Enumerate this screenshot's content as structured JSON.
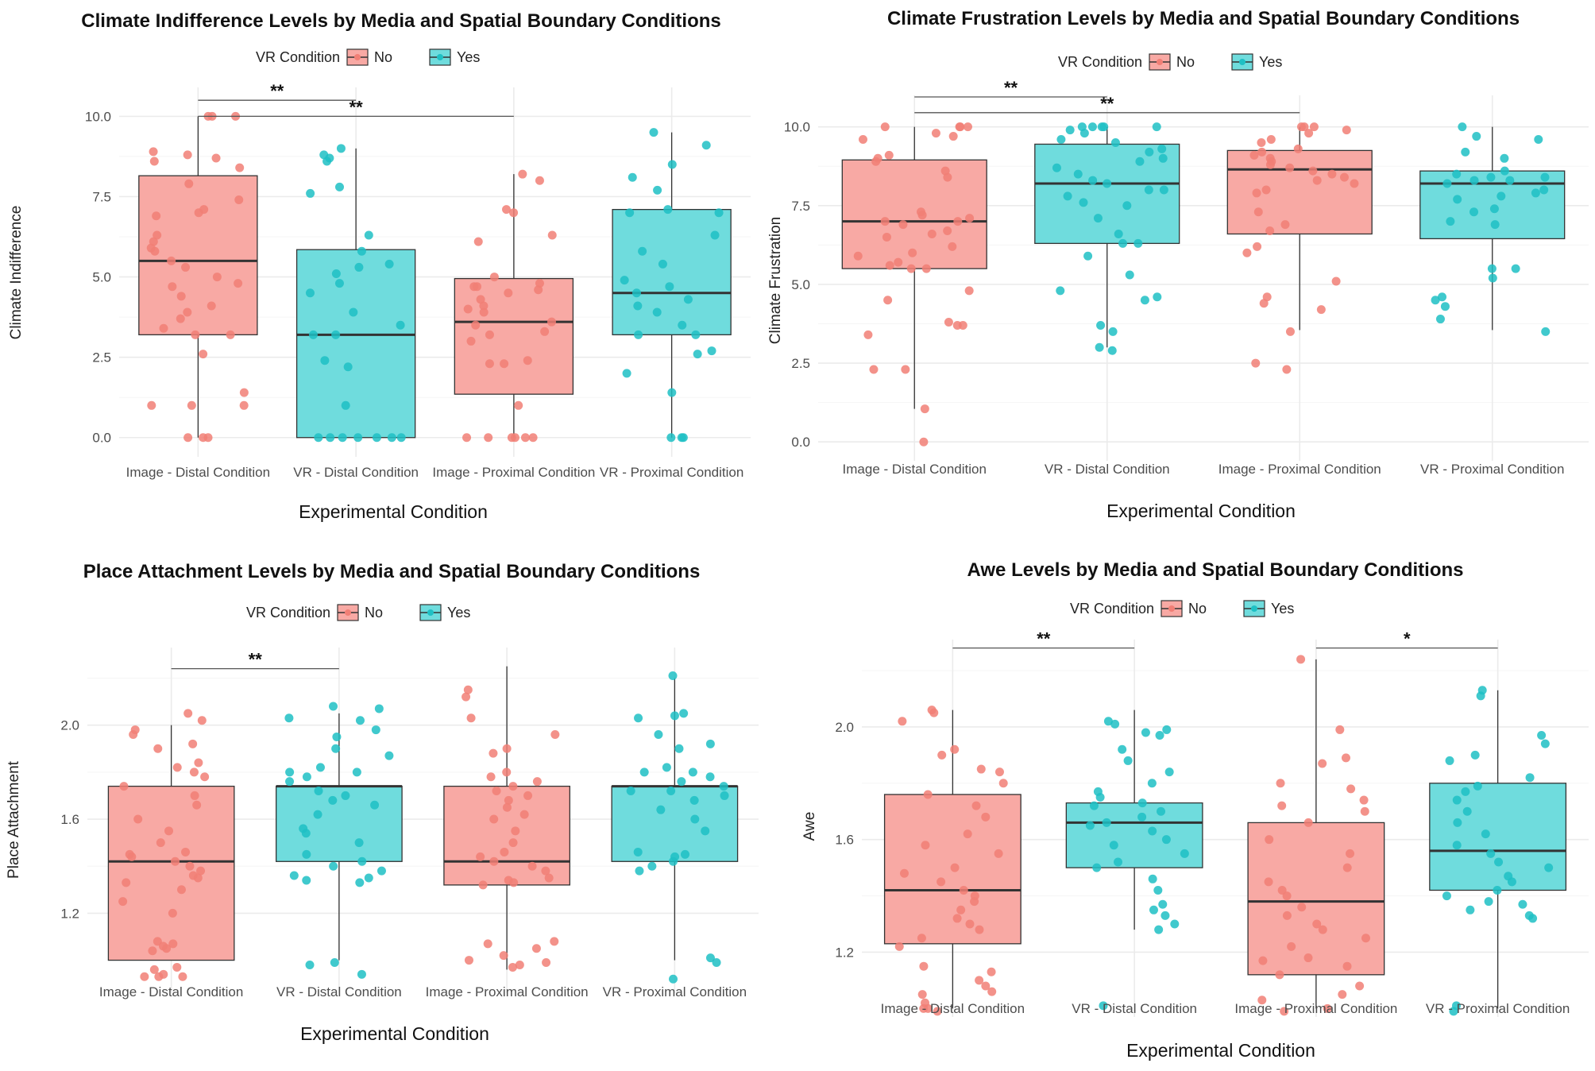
{
  "legend": {
    "title": "VR Condition",
    "labels": [
      "No",
      "Yes"
    ]
  },
  "colors": {
    "no_fill": "#f8a9a4",
    "no_point": "#f17f76",
    "yes_fill": "#6fdcdd",
    "yes_point": "#1fc0c4",
    "box_stroke": "#333333",
    "median": "#333333",
    "grid_major": "#ebebeb",
    "grid_minor": "#f5f5f5"
  },
  "chart_data": [
    {
      "type": "box",
      "title": "Climate Indifference Levels by Media and Spatial Boundary Conditions",
      "xlabel": "Experimental Condition",
      "ylabel": "Climate Indifference",
      "categories": [
        "Image - Distal Condition",
        "VR - Distal Condition",
        "Image - Proximal Condition",
        "VR - Proximal Condition"
      ],
      "vr": [
        "No",
        "Yes",
        "No",
        "Yes"
      ],
      "ylim": [
        -0.6,
        10.9
      ],
      "yticks": [
        0,
        2.5,
        5,
        7.5,
        10
      ],
      "ytick_labels": [
        "0.0",
        "2.5",
        "5.0",
        "7.5",
        "10.0"
      ],
      "boxes": [
        {
          "q1": 3.2,
          "median": 5.5,
          "q3": 8.15,
          "whisker_low": 0,
          "whisker_high": 10
        },
        {
          "q1": 0,
          "median": 3.2,
          "q3": 5.85,
          "whisker_low": 0,
          "whisker_high": 9
        },
        {
          "q1": 1.35,
          "median": 3.6,
          "q3": 4.95,
          "whisker_low": 0,
          "whisker_high": 8.2
        },
        {
          "q1": 3.2,
          "median": 4.5,
          "q3": 7.1,
          "whisker_low": 0,
          "whisker_high": 9.5
        }
      ],
      "points": [
        [
          10,
          10,
          10,
          8.9,
          8.8,
          8.7,
          8.6,
          8.4,
          7.9,
          7.4,
          7.1,
          7,
          6.9,
          6.3,
          6.1,
          5.9,
          5.8,
          5.5,
          5.3,
          5,
          4.8,
          4.7,
          4.4,
          4.1,
          3.9,
          3.7,
          3.4,
          3.2,
          3.2,
          2.6,
          1.4,
          1,
          1,
          1,
          0,
          0,
          0
        ],
        [
          9,
          8.8,
          8.7,
          8.6,
          7.8,
          7.6,
          6.3,
          5.8,
          5.4,
          5.3,
          5.1,
          4.8,
          4.5,
          3.9,
          3.5,
          3.2,
          3.2,
          2.4,
          2.2,
          1,
          0,
          0,
          0,
          0,
          0,
          0,
          0
        ],
        [
          8.2,
          8,
          7.1,
          7,
          6.3,
          6.1,
          5,
          4.8,
          4.7,
          4.7,
          4.6,
          4.5,
          4.3,
          4.1,
          4,
          3.9,
          3.6,
          3.5,
          3.3,
          3.2,
          3,
          2.4,
          2.3,
          2.3,
          1,
          0,
          0,
          0,
          0,
          0,
          0
        ],
        [
          9.5,
          9.1,
          8.5,
          8.1,
          7.7,
          7.1,
          7,
          7,
          6.3,
          5.8,
          5.4,
          4.9,
          4.7,
          4.5,
          4.3,
          4.1,
          3.9,
          3.5,
          3.2,
          3.2,
          2.7,
          2.6,
          2,
          1.4,
          0,
          0,
          0
        ]
      ],
      "significance": [
        {
          "from": 0,
          "to": 1,
          "label": "**",
          "y": 10.5
        },
        {
          "from": 0,
          "to": 2,
          "label": "**",
          "y": 10.0
        }
      ]
    },
    {
      "type": "box",
      "title": "Climate Frustration Levels by Media and Spatial Boundary Conditions",
      "xlabel": "Experimental Condition",
      "ylabel": "Climate Frustration",
      "categories": [
        "Image - Distal Condition",
        "VR - Distal Condition",
        "Image - Proximal Condition",
        "VR - Proximal Condition"
      ],
      "vr": [
        "No",
        "Yes",
        "No",
        "Yes"
      ],
      "ylim": [
        -0.6,
        11.0
      ],
      "yticks": [
        0,
        2.5,
        5,
        7.5,
        10
      ],
      "ytick_labels": [
        "0.0",
        "2.5",
        "5.0",
        "7.5",
        "10.0"
      ],
      "boxes": [
        {
          "q1": 5.5,
          "median": 7.0,
          "q3": 8.95,
          "whisker_low": 1.05,
          "whisker_high": 10
        },
        {
          "q1": 6.3,
          "median": 8.2,
          "q3": 9.45,
          "whisker_low": 3,
          "whisker_high": 10
        },
        {
          "q1": 6.6,
          "median": 8.65,
          "q3": 9.25,
          "whisker_low": 3.55,
          "whisker_high": 10
        },
        {
          "q1": 6.45,
          "median": 8.2,
          "q3": 8.6,
          "whisker_low": 3.55,
          "whisker_high": 10
        }
      ],
      "points": [
        [
          10,
          10,
          10,
          10,
          9.8,
          9.7,
          9.6,
          9.1,
          9,
          8.9,
          8.6,
          8.4,
          7.3,
          7.2,
          7.1,
          7,
          7,
          6.9,
          6.7,
          6.6,
          6.5,
          6.2,
          6,
          5.9,
          5.7,
          5.6,
          5.5,
          5.5,
          4.8,
          4.5,
          3.8,
          3.7,
          3.7,
          3.4,
          2.3,
          2.3,
          1.05,
          0
        ],
        [
          10,
          10,
          10,
          10,
          10,
          9.9,
          9.8,
          9.6,
          9.5,
          9.3,
          9.2,
          9,
          8.9,
          8.7,
          8.5,
          8.3,
          8.2,
          8,
          8,
          7.8,
          7.6,
          7.5,
          7.1,
          6.6,
          6.3,
          6.3,
          5.9,
          5.3,
          4.8,
          4.6,
          4.5,
          3.7,
          3.5,
          3,
          2.9
        ],
        [
          10,
          10,
          10,
          9.9,
          9.8,
          9.6,
          9.5,
          9.3,
          9.2,
          9.1,
          9,
          8.9,
          8.8,
          8.7,
          8.6,
          8.5,
          8.4,
          8.3,
          8.2,
          8,
          7.9,
          7.3,
          6.9,
          6.7,
          6.2,
          6,
          5.1,
          4.6,
          4.4,
          4.2,
          3.5,
          2.5,
          2.3
        ],
        [
          10,
          9.7,
          9.6,
          9.2,
          9,
          8.6,
          8.5,
          8.4,
          8.4,
          8.3,
          8.3,
          8.2,
          8,
          7.9,
          7.8,
          7.7,
          7.4,
          7.3,
          7,
          6.9,
          5.5,
          5.5,
          5.2,
          4.6,
          4.5,
          4.3,
          3.9,
          3.5
        ]
      ],
      "significance": [
        {
          "from": 0,
          "to": 1,
          "label": "**",
          "y": 10.95
        },
        {
          "from": 0,
          "to": 2,
          "label": "**",
          "y": 10.45
        }
      ]
    },
    {
      "type": "box",
      "title": "Place Attachment Levels by Media and Spatial Boundary Conditions",
      "xlabel": "Experimental Condition",
      "ylabel": "Place Attachment",
      "categories": [
        "Image - Distal Condition",
        "VR - Distal Condition",
        "Image - Proximal Condition",
        "VR - Proximal Condition"
      ],
      "vr": [
        "No",
        "Yes",
        "No",
        "Yes"
      ],
      "ylim": [
        0.86,
        2.33
      ],
      "yticks": [
        1.2,
        1.6,
        2.0
      ],
      "ytick_labels": [
        "1.2",
        "1.6",
        "2.0"
      ],
      "boxes": [
        {
          "q1": 1.0,
          "median": 1.42,
          "q3": 1.74,
          "whisker_low": 1.0,
          "whisker_high": 2.0
        },
        {
          "q1": 1.42,
          "median": 1.74,
          "q3": 1.74,
          "whisker_low": 1.0,
          "whisker_high": 2.05
        },
        {
          "q1": 1.32,
          "median": 1.42,
          "q3": 1.74,
          "whisker_low": 0.96,
          "whisker_high": 2.25
        },
        {
          "q1": 1.42,
          "median": 1.74,
          "q3": 1.74,
          "whisker_low": 1.0,
          "whisker_high": 2.2
        }
      ],
      "points": [
        [
          2.05,
          2.02,
          1.98,
          1.96,
          1.92,
          1.9,
          1.84,
          1.82,
          1.8,
          1.78,
          1.74,
          1.7,
          1.66,
          1.6,
          1.55,
          1.5,
          1.46,
          1.45,
          1.44,
          1.42,
          1.4,
          1.38,
          1.36,
          1.35,
          1.33,
          1.3,
          1.25,
          1.2,
          1.08,
          1.07,
          1.06,
          1.05,
          1.04,
          0.97,
          0.96,
          0.94,
          0.93,
          0.93,
          0.93
        ],
        [
          2.08,
          2.07,
          2.03,
          2.02,
          1.98,
          1.95,
          1.9,
          1.87,
          1.82,
          1.8,
          1.8,
          1.78,
          1.76,
          1.72,
          1.7,
          1.68,
          1.66,
          1.62,
          1.56,
          1.54,
          1.5,
          1.45,
          1.42,
          1.4,
          1.38,
          1.36,
          1.35,
          1.34,
          1.33,
          0.99,
          0.98,
          0.94
        ],
        [
          2.15,
          2.12,
          2.03,
          1.96,
          1.9,
          1.88,
          1.8,
          1.78,
          1.76,
          1.74,
          1.72,
          1.7,
          1.68,
          1.65,
          1.62,
          1.6,
          1.55,
          1.5,
          1.46,
          1.44,
          1.42,
          1.4,
          1.38,
          1.35,
          1.34,
          1.33,
          1.32,
          1.08,
          1.07,
          1.05,
          1.02,
          1.0,
          0.99,
          0.98,
          0.97
        ],
        [
          2.21,
          2.05,
          2.04,
          2.03,
          1.96,
          1.92,
          1.9,
          1.82,
          1.8,
          1.8,
          1.78,
          1.76,
          1.74,
          1.72,
          1.72,
          1.7,
          1.68,
          1.64,
          1.6,
          1.55,
          1.46,
          1.45,
          1.44,
          1.42,
          1.4,
          1.38,
          1.01,
          0.99,
          0.92
        ]
      ],
      "significance": [
        {
          "from": 0,
          "to": 1,
          "label": "**",
          "y": 2.24
        }
      ]
    },
    {
      "type": "box",
      "title": "Awe Levels by Media and Spatial Boundary Conditions",
      "xlabel": "Experimental Condition",
      "ylabel": "Awe",
      "categories": [
        "Image - Distal Condition",
        "VR - Distal Condition",
        "Image - Proximal Condition",
        "VR - Proximal Condition"
      ],
      "vr": [
        "No",
        "Yes",
        "No",
        "Yes"
      ],
      "ylim": [
        0.97,
        2.31
      ],
      "yticks": [
        1.2,
        1.6,
        2.0
      ],
      "ytick_labels": [
        "1.2",
        "1.6",
        "2.0"
      ],
      "boxes": [
        {
          "q1": 1.23,
          "median": 1.42,
          "q3": 1.76,
          "whisker_low": 1.0,
          "whisker_high": 2.06
        },
        {
          "q1": 1.5,
          "median": 1.66,
          "q3": 1.73,
          "whisker_low": 1.28,
          "whisker_high": 2.06
        },
        {
          "q1": 1.12,
          "median": 1.38,
          "q3": 1.66,
          "whisker_low": 1.0,
          "whisker_high": 2.24
        },
        {
          "q1": 1.42,
          "median": 1.56,
          "q3": 1.8,
          "whisker_low": 1.0,
          "whisker_high": 2.13
        }
      ],
      "points": [
        [
          2.06,
          2.05,
          2.02,
          1.92,
          1.9,
          1.85,
          1.84,
          1.8,
          1.76,
          1.72,
          1.68,
          1.62,
          1.58,
          1.55,
          1.5,
          1.48,
          1.45,
          1.42,
          1.4,
          1.38,
          1.35,
          1.32,
          1.3,
          1.28,
          1.25,
          1.22,
          1.15,
          1.13,
          1.1,
          1.08,
          1.06,
          1.05,
          1.02,
          1.0,
          1.0,
          0.99
        ],
        [
          2.02,
          2.01,
          1.99,
          1.98,
          1.97,
          1.92,
          1.88,
          1.84,
          1.8,
          1.77,
          1.75,
          1.73,
          1.72,
          1.7,
          1.68,
          1.66,
          1.65,
          1.63,
          1.6,
          1.58,
          1.55,
          1.52,
          1.5,
          1.46,
          1.42,
          1.37,
          1.35,
          1.33,
          1.3,
          1.28,
          1.01
        ],
        [
          2.24,
          1.99,
          1.89,
          1.87,
          1.8,
          1.78,
          1.74,
          1.72,
          1.7,
          1.66,
          1.6,
          1.55,
          1.5,
          1.45,
          1.42,
          1.4,
          1.36,
          1.33,
          1.3,
          1.28,
          1.25,
          1.22,
          1.18,
          1.17,
          1.15,
          1.12,
          1.08,
          1.05,
          1.03,
          1.0,
          0.99
        ],
        [
          2.13,
          2.11,
          1.97,
          1.94,
          1.9,
          1.88,
          1.82,
          1.79,
          1.77,
          1.74,
          1.7,
          1.66,
          1.62,
          1.58,
          1.55,
          1.52,
          1.5,
          1.47,
          1.45,
          1.42,
          1.4,
          1.38,
          1.37,
          1.35,
          1.33,
          1.32,
          1.01,
          0.99
        ]
      ],
      "significance": [
        {
          "from": 0,
          "to": 1,
          "label": "**",
          "y": 2.28
        },
        {
          "from": 2,
          "to": 3,
          "label": "*",
          "y": 2.28
        }
      ]
    }
  ]
}
